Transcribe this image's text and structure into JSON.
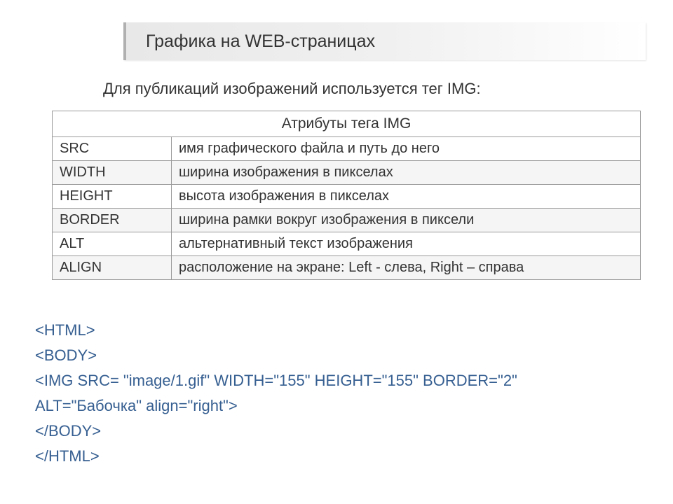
{
  "header": {
    "title": "Графика на WEB-страницах"
  },
  "subtitle": "Для публикаций изображений используется тег IMG:",
  "table": {
    "caption": "Атрибуты тега IMG",
    "col_widths": {
      "attr": 170,
      "desc": 670
    },
    "border_color": "#9a9a9a",
    "row_alt_bg": "#f5f5f5",
    "font_size": 20,
    "rows": [
      {
        "attr": "SRC",
        "desc": "имя графического файла и путь до него"
      },
      {
        "attr": "WIDTH",
        "desc": "ширина изображения в пикселах"
      },
      {
        "attr": "HEIGHT",
        "desc": "высота изображения в пикселах"
      },
      {
        "attr": "BORDER",
        "desc": "ширина рамки вокруг изображения в пиксели"
      },
      {
        "attr": "ALT",
        "desc": "альтернативный текст изображения"
      },
      {
        "attr": "ALIGN",
        "desc": "расположение на экране: Left - слева, Right – справа"
      }
    ]
  },
  "code": {
    "color": "#365f91",
    "font_size": 22,
    "lines": [
      "<HTML>",
      "<BODY>",
      "<IMG SRC= \"image/1.gif\" WIDTH=\"155\" HEIGHT=\"155\" BORDER=\"2\"",
      "ALT=\"Бабочка\" align=\"right\">",
      "</BODY>",
      "</HTML>"
    ]
  },
  "colors": {
    "page_bg": "#ffffff",
    "text": "#333333",
    "banner_border": "#b0b0b0",
    "banner_gradient_from": "#e8e8e8",
    "banner_gradient_to": "#ffffff"
  }
}
